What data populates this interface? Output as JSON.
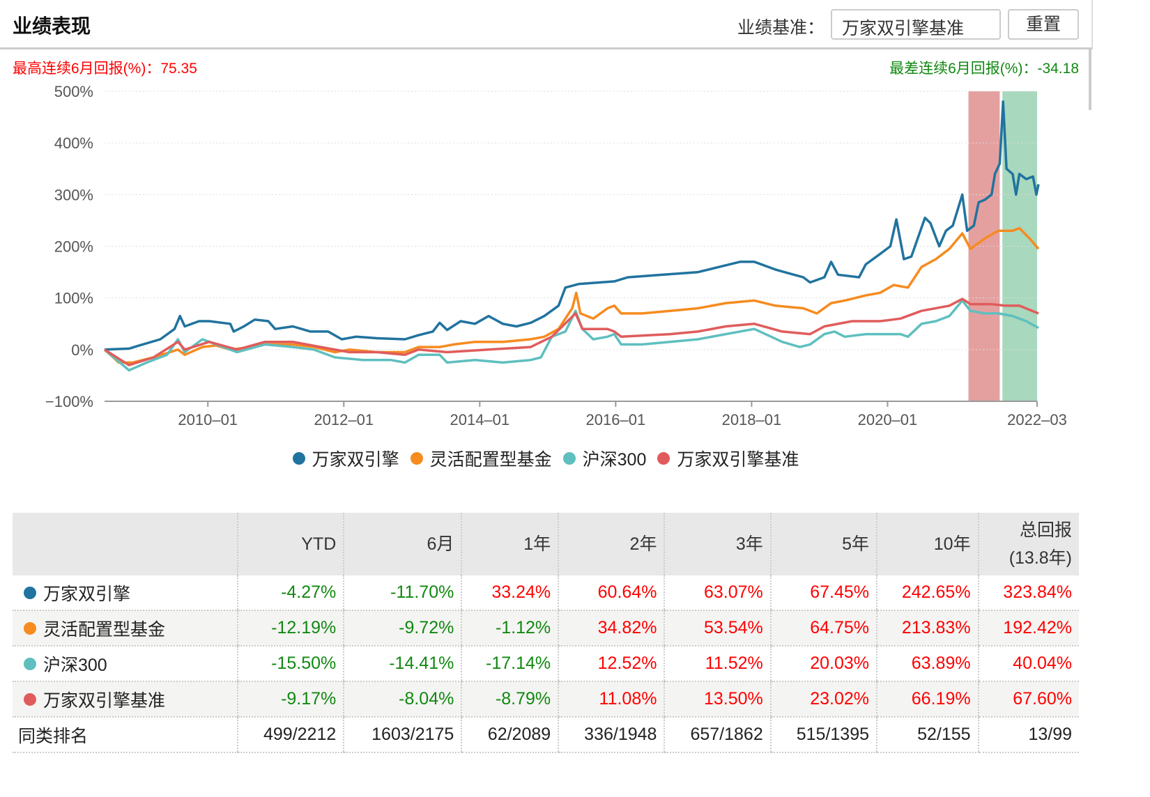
{
  "header": {
    "title": "业绩表现",
    "benchmark_label": "业绩基准：",
    "benchmark_value": "万家双引擎基准",
    "reset_label": "重置"
  },
  "stats": {
    "best_label": "最高连续6月回报(%)：",
    "best_value": "75.35",
    "worst_label": "最差连续6月回报(%)：",
    "worst_value": "-34.18"
  },
  "colors": {
    "fund": "#21739f",
    "flex": "#f68b1f",
    "hs300": "#5fbfbf",
    "bench": "#e05c5c",
    "best_band": "#e4a09f",
    "worst_band": "#a8d8bd"
  },
  "chart_data": {
    "type": "line",
    "ylim": [
      -100,
      500
    ],
    "yticks": [
      {
        "v": 500,
        "label": "500%"
      },
      {
        "v": 400,
        "label": "400%"
      },
      {
        "v": 300,
        "label": "300%"
      },
      {
        "v": 200,
        "label": "200%"
      },
      {
        "v": 100,
        "label": "100%"
      },
      {
        "v": 0,
        "label": "0%"
      },
      {
        "v": -100,
        "label": "−100%"
      }
    ],
    "xlim": [
      2008.48,
      2022.2
    ],
    "xticks": [
      {
        "v": 2010.0,
        "label": "2010–01"
      },
      {
        "v": 2012.0,
        "label": "2012–01"
      },
      {
        "v": 2014.0,
        "label": "2014–01"
      },
      {
        "v": 2016.0,
        "label": "2016–01"
      },
      {
        "v": 2018.0,
        "label": "2018–01"
      },
      {
        "v": 2020.0,
        "label": "2020–01"
      },
      {
        "v": 2022.2,
        "label": "2022–03"
      }
    ],
    "bands": [
      {
        "name": "best-6m",
        "from": 2021.19,
        "to": 2021.65
      },
      {
        "name": "worst-6m",
        "from": 2021.69,
        "to": 2022.2
      }
    ],
    "series": [
      {
        "key": "fund",
        "name": "万家双引擎",
        "points": [
          [
            2008.48,
            0
          ],
          [
            2008.84,
            2
          ],
          [
            2008.99,
            8
          ],
          [
            2009.3,
            20
          ],
          [
            2009.51,
            40
          ],
          [
            2009.59,
            65
          ],
          [
            2009.66,
            45
          ],
          [
            2009.87,
            55
          ],
          [
            2010.02,
            55
          ],
          [
            2010.33,
            50
          ],
          [
            2010.38,
            35
          ],
          [
            2010.53,
            45
          ],
          [
            2010.69,
            58
          ],
          [
            2010.89,
            55
          ],
          [
            2010.99,
            40
          ],
          [
            2011.25,
            45
          ],
          [
            2011.51,
            35
          ],
          [
            2011.77,
            35
          ],
          [
            2011.97,
            20
          ],
          [
            2012.18,
            25
          ],
          [
            2012.49,
            22
          ],
          [
            2012.9,
            20
          ],
          [
            2013.1,
            28
          ],
          [
            2013.31,
            35
          ],
          [
            2013.41,
            52
          ],
          [
            2013.52,
            38
          ],
          [
            2013.72,
            55
          ],
          [
            2013.93,
            50
          ],
          [
            2014.13,
            65
          ],
          [
            2014.34,
            50
          ],
          [
            2014.54,
            45
          ],
          [
            2014.75,
            52
          ],
          [
            2014.95,
            65
          ],
          [
            2015.16,
            85
          ],
          [
            2015.26,
            120
          ],
          [
            2015.46,
            127
          ],
          [
            2015.77,
            130
          ],
          [
            2015.98,
            132
          ],
          [
            2016.18,
            140
          ],
          [
            2016.7,
            145
          ],
          [
            2017.21,
            150
          ],
          [
            2017.52,
            160
          ],
          [
            2017.83,
            170
          ],
          [
            2018.04,
            170
          ],
          [
            2018.35,
            155
          ],
          [
            2018.76,
            140
          ],
          [
            2018.86,
            130
          ],
          [
            2019.07,
            140
          ],
          [
            2019.17,
            170
          ],
          [
            2019.27,
            145
          ],
          [
            2019.58,
            140
          ],
          [
            2019.68,
            165
          ],
          [
            2019.89,
            185
          ],
          [
            2020.04,
            200
          ],
          [
            2020.13,
            252
          ],
          [
            2020.24,
            175
          ],
          [
            2020.35,
            180
          ],
          [
            2020.55,
            255
          ],
          [
            2020.63,
            245
          ],
          [
            2020.76,
            200
          ],
          [
            2020.86,
            230
          ],
          [
            2020.96,
            240
          ],
          [
            2021.1,
            300
          ],
          [
            2021.17,
            230
          ],
          [
            2021.27,
            240
          ],
          [
            2021.34,
            285
          ],
          [
            2021.43,
            290
          ],
          [
            2021.53,
            300
          ],
          [
            2021.58,
            340
          ],
          [
            2021.65,
            360
          ],
          [
            2021.7,
            480
          ],
          [
            2021.75,
            350
          ],
          [
            2021.84,
            340
          ],
          [
            2021.89,
            300
          ],
          [
            2021.94,
            340
          ],
          [
            2022.04,
            330
          ],
          [
            2022.14,
            335
          ],
          [
            2022.19,
            300
          ],
          [
            2022.22,
            320
          ]
        ]
      },
      {
        "key": "flex",
        "name": "灵活配置型基金",
        "points": [
          [
            2008.48,
            0
          ],
          [
            2008.69,
            -25
          ],
          [
            2008.89,
            -25
          ],
          [
            2009.2,
            -15
          ],
          [
            2009.56,
            0
          ],
          [
            2009.66,
            -10
          ],
          [
            2009.92,
            5
          ],
          [
            2010.12,
            8
          ],
          [
            2010.33,
            0
          ],
          [
            2010.64,
            5
          ],
          [
            2010.84,
            10
          ],
          [
            2011.25,
            10
          ],
          [
            2011.56,
            5
          ],
          [
            2011.87,
            -5
          ],
          [
            2012.08,
            0
          ],
          [
            2012.49,
            -5
          ],
          [
            2012.9,
            -5
          ],
          [
            2013.1,
            5
          ],
          [
            2013.41,
            5
          ],
          [
            2013.62,
            10
          ],
          [
            2013.93,
            15
          ],
          [
            2014.34,
            15
          ],
          [
            2014.75,
            20
          ],
          [
            2014.95,
            25
          ],
          [
            2015.16,
            40
          ],
          [
            2015.26,
            60
          ],
          [
            2015.36,
            80
          ],
          [
            2015.42,
            110
          ],
          [
            2015.48,
            70
          ],
          [
            2015.67,
            60
          ],
          [
            2015.88,
            80
          ],
          [
            2015.98,
            85
          ],
          [
            2016.08,
            70
          ],
          [
            2016.39,
            70
          ],
          [
            2016.8,
            75
          ],
          [
            2017.21,
            80
          ],
          [
            2017.62,
            90
          ],
          [
            2018.04,
            95
          ],
          [
            2018.35,
            85
          ],
          [
            2018.76,
            80
          ],
          [
            2018.96,
            70
          ],
          [
            2019.17,
            90
          ],
          [
            2019.37,
            95
          ],
          [
            2019.68,
            105
          ],
          [
            2019.89,
            110
          ],
          [
            2020.09,
            125
          ],
          [
            2020.3,
            120
          ],
          [
            2020.5,
            160
          ],
          [
            2020.71,
            175
          ],
          [
            2020.91,
            195
          ],
          [
            2021.1,
            225
          ],
          [
            2021.22,
            195
          ],
          [
            2021.43,
            215
          ],
          [
            2021.63,
            230
          ],
          [
            2021.84,
            230
          ],
          [
            2021.94,
            235
          ],
          [
            2022.09,
            215
          ],
          [
            2022.22,
            195
          ]
        ]
      },
      {
        "key": "hs300",
        "name": "沪深300",
        "points": [
          [
            2008.48,
            0
          ],
          [
            2008.84,
            -40
          ],
          [
            2009.1,
            -25
          ],
          [
            2009.4,
            -10
          ],
          [
            2009.56,
            20
          ],
          [
            2009.66,
            -5
          ],
          [
            2009.92,
            20
          ],
          [
            2010.12,
            10
          ],
          [
            2010.43,
            -5
          ],
          [
            2010.84,
            10
          ],
          [
            2011.25,
            5
          ],
          [
            2011.56,
            0
          ],
          [
            2011.87,
            -15
          ],
          [
            2012.28,
            -20
          ],
          [
            2012.69,
            -20
          ],
          [
            2012.9,
            -25
          ],
          [
            2013.1,
            -10
          ],
          [
            2013.41,
            -10
          ],
          [
            2013.52,
            -25
          ],
          [
            2013.93,
            -20
          ],
          [
            2014.34,
            -25
          ],
          [
            2014.75,
            -20
          ],
          [
            2014.9,
            -15
          ],
          [
            2015.06,
            25
          ],
          [
            2015.16,
            30
          ],
          [
            2015.26,
            35
          ],
          [
            2015.41,
            75
          ],
          [
            2015.51,
            40
          ],
          [
            2015.67,
            20
          ],
          [
            2015.88,
            25
          ],
          [
            2015.98,
            30
          ],
          [
            2016.08,
            10
          ],
          [
            2016.39,
            10
          ],
          [
            2016.8,
            15
          ],
          [
            2017.21,
            20
          ],
          [
            2017.62,
            30
          ],
          [
            2018.04,
            40
          ],
          [
            2018.45,
            15
          ],
          [
            2018.71,
            5
          ],
          [
            2018.86,
            10
          ],
          [
            2019.07,
            30
          ],
          [
            2019.22,
            35
          ],
          [
            2019.37,
            25
          ],
          [
            2019.68,
            30
          ],
          [
            2020.19,
            30
          ],
          [
            2020.3,
            25
          ],
          [
            2020.5,
            50
          ],
          [
            2020.71,
            55
          ],
          [
            2020.91,
            65
          ],
          [
            2021.1,
            95
          ],
          [
            2021.22,
            75
          ],
          [
            2021.43,
            70
          ],
          [
            2021.63,
            70
          ],
          [
            2021.84,
            65
          ],
          [
            2022.04,
            55
          ],
          [
            2022.22,
            42
          ]
        ]
      },
      {
        "key": "bench",
        "name": "万家双引擎基准",
        "points": [
          [
            2008.48,
            0
          ],
          [
            2008.84,
            -30
          ],
          [
            2009.2,
            -15
          ],
          [
            2009.56,
            15
          ],
          [
            2009.66,
            0
          ],
          [
            2010.02,
            15
          ],
          [
            2010.43,
            0
          ],
          [
            2010.84,
            15
          ],
          [
            2011.25,
            15
          ],
          [
            2011.66,
            5
          ],
          [
            2012.08,
            -5
          ],
          [
            2012.49,
            -5
          ],
          [
            2012.9,
            -10
          ],
          [
            2013.1,
            0
          ],
          [
            2013.52,
            -5
          ],
          [
            2014.13,
            0
          ],
          [
            2014.75,
            5
          ],
          [
            2015.06,
            25
          ],
          [
            2015.41,
            70
          ],
          [
            2015.51,
            40
          ],
          [
            2015.88,
            40
          ],
          [
            2015.98,
            35
          ],
          [
            2016.08,
            25
          ],
          [
            2016.8,
            30
          ],
          [
            2017.21,
            35
          ],
          [
            2017.62,
            45
          ],
          [
            2018.04,
            50
          ],
          [
            2018.45,
            35
          ],
          [
            2018.86,
            30
          ],
          [
            2019.07,
            45
          ],
          [
            2019.48,
            55
          ],
          [
            2019.89,
            55
          ],
          [
            2020.19,
            60
          ],
          [
            2020.5,
            75
          ],
          [
            2020.91,
            85
          ],
          [
            2021.1,
            98
          ],
          [
            2021.22,
            88
          ],
          [
            2021.53,
            88
          ],
          [
            2021.73,
            85
          ],
          [
            2021.94,
            85
          ],
          [
            2022.22,
            70
          ]
        ]
      }
    ]
  },
  "legend": [
    {
      "key": "fund",
      "label": "万家双引擎"
    },
    {
      "key": "flex",
      "label": "灵活配置型基金"
    },
    {
      "key": "hs300",
      "label": "沪深300"
    },
    {
      "key": "bench",
      "label": "万家双引擎基准"
    }
  ],
  "table": {
    "headers": [
      "",
      "YTD",
      "6月",
      "1年",
      "2年",
      "3年",
      "5年",
      "10年",
      "总回报",
      "(13.8年)"
    ],
    "rows": [
      {
        "key": "fund",
        "name": "万家双引擎",
        "values": [
          "-4.27%",
          "-11.70%",
          "33.24%",
          "60.64%",
          "63.07%",
          "67.45%",
          "242.65%",
          "323.84%"
        ]
      },
      {
        "key": "flex",
        "name": "灵活配置型基金",
        "values": [
          "-12.19%",
          "-9.72%",
          "-1.12%",
          "34.82%",
          "53.54%",
          "64.75%",
          "213.83%",
          "192.42%"
        ]
      },
      {
        "key": "hs300",
        "name": "沪深300",
        "values": [
          "-15.50%",
          "-14.41%",
          "-17.14%",
          "12.52%",
          "11.52%",
          "20.03%",
          "63.89%",
          "40.04%"
        ]
      },
      {
        "key": "bench",
        "name": "万家双引擎基准",
        "values": [
          "-9.17%",
          "-8.04%",
          "-8.79%",
          "11.08%",
          "13.50%",
          "23.02%",
          "66.19%",
          "67.60%"
        ]
      }
    ],
    "rank": {
      "name": "同类排名",
      "values": [
        "499/2212",
        "1603/2175",
        "62/2089",
        "336/1948",
        "657/1862",
        "515/1395",
        "52/155",
        "13/99"
      ]
    }
  }
}
